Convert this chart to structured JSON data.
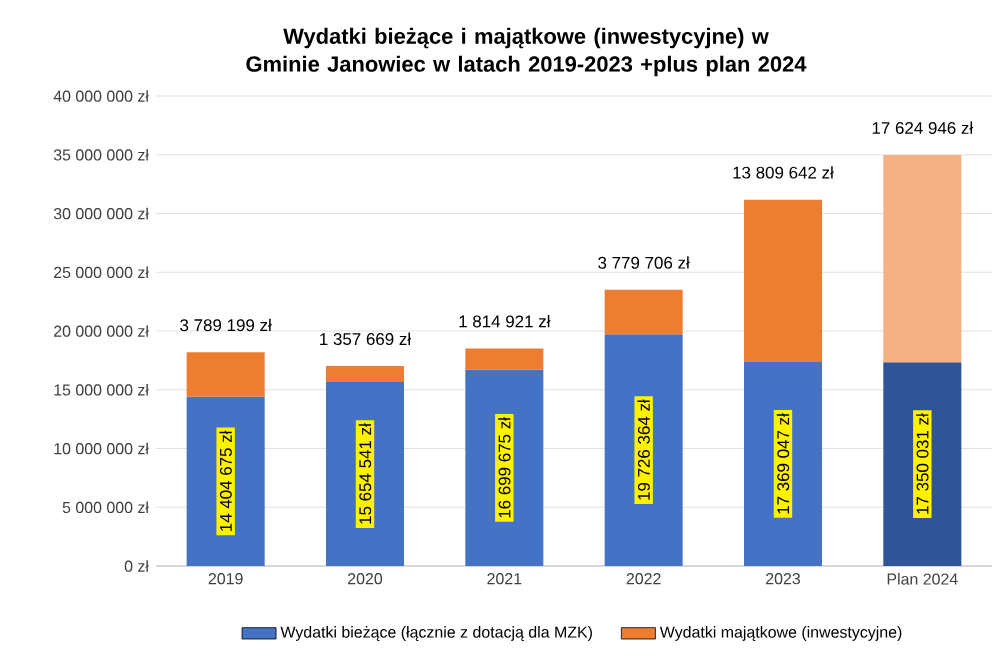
{
  "chart_data": {
    "type": "bar",
    "stacked": true,
    "title": "Wydatki bieżące i majątkowe (inwestycyjne) w Gminie Janowiec w latach 2019-2023 +plus plan 2024",
    "categories": [
      "2019",
      "2020",
      "2021",
      "2022",
      "2023",
      "Plan 2024"
    ],
    "series": [
      {
        "name": "Wydatki bieżące (łącznie z dotacją dla MZK)",
        "color": "#4472c4",
        "colors": [
          "#4472c4",
          "#4472c4",
          "#4472c4",
          "#4472c4",
          "#4472c4",
          "#2f5597"
        ],
        "values": [
          14404675,
          15654541,
          16699675,
          19726364,
          17369047,
          17350031
        ],
        "value_labels": [
          "14 404 675 zł",
          "15 654 541 zł",
          "16 699 675 zł",
          "19 726 364 zł",
          "17 369 047 zł",
          "17 350 031 zł"
        ]
      },
      {
        "name": "Wydatki majątkowe (inwestycyjne)",
        "color": "#ed7d31",
        "colors": [
          "#ed7d31",
          "#ed7d31",
          "#ed7d31",
          "#ed7d31",
          "#ed7d31",
          "#f4b183"
        ],
        "values": [
          3789199,
          1357669,
          1814921,
          3779706,
          13809642,
          17624946
        ],
        "value_labels": [
          "3 789 199 zł",
          "1 357 669 zł",
          "1 814 921 zł",
          "3 779 706 zł",
          "13 809 642 zł",
          "17 624 946 zł"
        ]
      }
    ],
    "ylim": [
      0,
      40000000
    ],
    "yticks": [
      {
        "value": 0,
        "label": "0 zł"
      },
      {
        "value": 5000000,
        "label": "5 000 000 zł"
      },
      {
        "value": 10000000,
        "label": "10 000 000 zł"
      },
      {
        "value": 15000000,
        "label": "15 000 000 zł"
      },
      {
        "value": 20000000,
        "label": "20 000 000 zł"
      },
      {
        "value": 25000000,
        "label": "25 000 000 zł"
      },
      {
        "value": 30000000,
        "label": "30 000 000 zł"
      },
      {
        "value": 35000000,
        "label": "35 000 000 zł"
      },
      {
        "value": 40000000,
        "label": "40 000 000 zł"
      }
    ],
    "grid": "y",
    "legend": "bottom"
  }
}
